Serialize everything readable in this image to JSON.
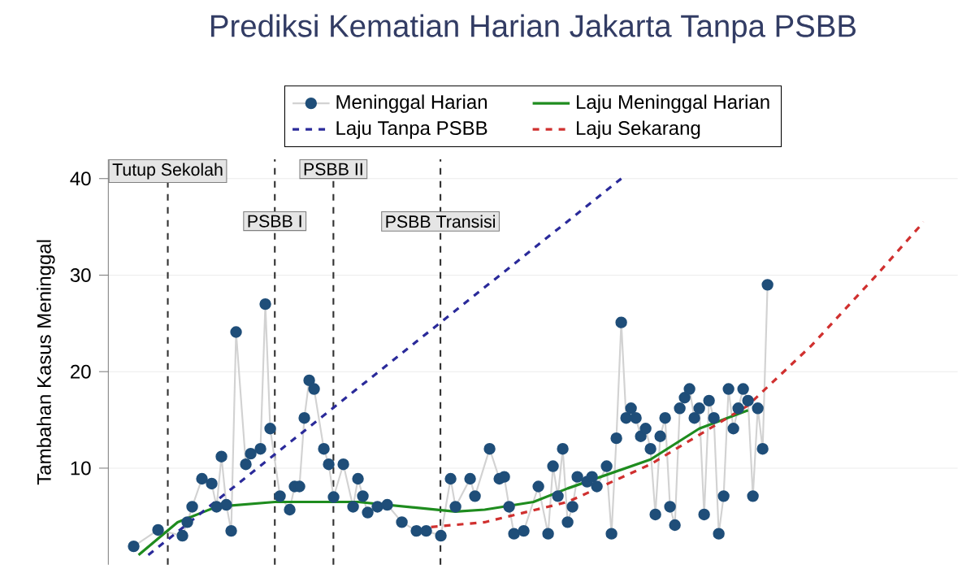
{
  "chart_data": {
    "type": "line",
    "title": "Prediksi Kematian Harian Jakarta Tanpa PSBB",
    "ylabel": "Tambahan Kasus Meninggal",
    "categories": [
      null,
      null,
      null,
      null,
      null,
      null,
      null,
      null,
      null,
      null,
      null,
      null,
      null,
      null,
      null,
      null,
      null,
      null,
      null,
      null,
      null,
      null,
      null,
      null,
      null,
      null,
      null,
      null,
      null,
      null,
      null,
      null,
      null,
      null,
      null,
      null,
      null,
      null,
      null,
      null,
      null,
      null,
      null,
      null,
      null,
      null,
      null,
      null,
      null,
      null,
      null,
      null,
      null,
      null,
      null,
      null,
      null,
      null,
      null,
      null,
      null,
      null,
      null,
      null,
      null,
      null,
      null,
      null,
      null,
      null,
      null,
      null,
      null,
      null,
      null,
      null,
      null,
      null,
      null,
      null,
      null,
      null,
      null,
      null,
      null,
      null,
      null,
      null,
      null,
      null,
      null,
      null,
      null,
      null,
      null,
      null,
      null,
      null,
      null,
      null,
      null,
      null,
      null,
      null,
      null,
      null,
      null,
      null,
      null,
      null,
      null,
      null,
      null,
      null,
      null,
      null,
      null,
      null,
      null,
      null,
      null,
      null,
      null,
      null,
      null,
      null,
      null,
      null,
      null,
      null,
      null,
      null,
      null,
      null,
      null,
      null,
      null,
      null,
      null,
      null,
      null,
      null,
      null,
      null,
      null,
      null,
      null,
      null,
      null,
      null,
      null,
      null,
      null,
      null,
      null,
      null,
      null,
      null,
      null,
      null,
      null,
      null,
      null,
      null,
      null,
      null,
      null,
      null
    ],
    "ylim": [
      0,
      42
    ],
    "yticks": [
      10,
      20,
      30,
      40
    ],
    "tick_labels": "y",
    "grid": "y",
    "legend": "top",
    "series": [
      {
        "name": "Meninggal Harian",
        "color": "#1f4e79",
        "marker": "circle",
        "line_style": "solid",
        "values": [
          null,
          1.9,
          null,
          null,
          null,
          null,
          3.6,
          null,
          null,
          null,
          null,
          3.0,
          4.4,
          6,
          null,
          8.9,
          null,
          8.4,
          6,
          11.2,
          6.2,
          3.5,
          24.1,
          null,
          10.4,
          11.5,
          null,
          12,
          27,
          14.1,
          null,
          7.1,
          null,
          5.7,
          8.1,
          8.1,
          15.2,
          19.1,
          18.2,
          null,
          12,
          10.4,
          7,
          null,
          10.4,
          null,
          6,
          8.9,
          7.1,
          5.4,
          null,
          6,
          null,
          6.2,
          null,
          null,
          4.4,
          null,
          null,
          3.5,
          null,
          3.5,
          null,
          null,
          3,
          null,
          8.9,
          6,
          null,
          null,
          8.9,
          7.1,
          null,
          null,
          12,
          null,
          8.9,
          9.1,
          6,
          3.2,
          null,
          3.5,
          null,
          null,
          8.1,
          null,
          3.2,
          10.2,
          7.1,
          12,
          4.4,
          6,
          9.1,
          null,
          8.6,
          9.1,
          8.1,
          null,
          10.2,
          3.2,
          13.1,
          25.1,
          15.2,
          16.2,
          15.2,
          13.3,
          14.1,
          12,
          5.2,
          13.3,
          15.2,
          6,
          4.1,
          16.2,
          17.3,
          18.2,
          15.2,
          16.2,
          5.2,
          17,
          15.2,
          3.2,
          7.1,
          18.2,
          14.1,
          16.2,
          18.2,
          17,
          7.1,
          16.2,
          12,
          29,
          null,
          null,
          null,
          null,
          null,
          null,
          null,
          null,
          null,
          null,
          null,
          null,
          null,
          null,
          null,
          null,
          null,
          null,
          null,
          null,
          null,
          null,
          null,
          null,
          null,
          null,
          null,
          null,
          null,
          null,
          null,
          null,
          null,
          null,
          null,
          null
        ]
      },
      {
        "name": "Laju Meninggal Harian",
        "color": "#1e8c1e",
        "marker": "none",
        "line_style": "solid",
        "values": [
          null,
          null,
          1.0,
          null,
          null,
          null,
          null,
          null,
          null,
          null,
          4.4,
          null,
          null,
          null,
          null,
          null,
          null,
          null,
          6,
          null,
          null,
          null,
          null,
          null,
          null,
          null,
          null,
          null,
          null,
          null,
          6.5,
          null,
          null,
          null,
          null,
          null,
          null,
          null,
          null,
          null,
          null,
          null,
          null,
          null,
          null,
          null,
          null,
          6.5,
          null,
          null,
          null,
          null,
          null,
          null,
          null,
          null,
          null,
          6,
          null,
          null,
          null,
          null,
          null,
          null,
          null,
          null,
          null,
          5.5,
          null,
          null,
          null,
          null,
          null,
          5.7,
          null,
          null,
          null,
          null,
          null,
          null,
          null,
          null,
          null,
          6.5,
          null,
          null,
          null,
          null,
          null,
          null,
          7.9,
          null,
          null,
          null,
          null,
          null,
          null,
          null,
          null,
          null,
          null,
          null,
          null,
          null,
          null,
          null,
          null,
          10.9,
          null,
          null,
          null,
          null,
          null,
          null,
          null,
          null,
          null,
          14.1,
          null,
          null,
          null,
          null,
          null,
          null,
          null,
          null,
          null,
          16,
          null,
          null,
          null,
          null,
          null,
          null,
          null,
          null,
          null,
          null,
          null,
          null,
          null,
          null,
          null,
          null,
          null,
          null,
          null,
          null,
          null,
          null,
          null,
          null,
          null,
          null,
          null,
          null,
          null,
          null,
          null,
          null,
          null,
          null,
          null,
          null,
          null,
          null,
          null,
          null
        ]
      },
      {
        "name": "Laju Tanpa PSBB",
        "color": "#2a2a9a",
        "marker": "none",
        "line_style": "dashed",
        "values": [
          null,
          null,
          null,
          null,
          1.0,
          null,
          null,
          null,
          null,
          null,
          null,
          null,
          null,
          null,
          null,
          null,
          null,
          null,
          null,
          null,
          null,
          null,
          null,
          null,
          null,
          null,
          null,
          null,
          null,
          null,
          null,
          null,
          null,
          null,
          null,
          null,
          null,
          null,
          null,
          null,
          null,
          null,
          null,
          null,
          null,
          null,
          null,
          null,
          null,
          null,
          null,
          null,
          null,
          null,
          null,
          null,
          null,
          null,
          null,
          null,
          null,
          null,
          null,
          null,
          null,
          null,
          null,
          null,
          null,
          null,
          null,
          null,
          null,
          null,
          null,
          null,
          null,
          null,
          null,
          null,
          null,
          null,
          null,
          null,
          null,
          null,
          null,
          null,
          null,
          null,
          null,
          null,
          null,
          null,
          null,
          null,
          null,
          null,
          null,
          null,
          null,
          40,
          null,
          null,
          null,
          null,
          null,
          null,
          null,
          null,
          null,
          null,
          null,
          null,
          null,
          null,
          null,
          null,
          null,
          null,
          null,
          null,
          null,
          null,
          null,
          null,
          null,
          null,
          null,
          null,
          null,
          null,
          null,
          null,
          null,
          null,
          null,
          null,
          null,
          null,
          null,
          null,
          null,
          null,
          null,
          null,
          null,
          null,
          null,
          null,
          null,
          null,
          null,
          null,
          null,
          null,
          null,
          null,
          null,
          null,
          null,
          null,
          null,
          null,
          null,
          null,
          null,
          null
        ]
      },
      {
        "name": "Laju Sekarang",
        "color": "#d0302f",
        "marker": "none",
        "line_style": "dashed",
        "values": [
          null,
          null,
          null,
          null,
          null,
          null,
          null,
          null,
          null,
          null,
          null,
          null,
          null,
          null,
          null,
          null,
          null,
          null,
          null,
          null,
          null,
          null,
          null,
          null,
          null,
          null,
          null,
          null,
          null,
          null,
          null,
          null,
          null,
          null,
          null,
          null,
          null,
          null,
          null,
          null,
          null,
          null,
          null,
          null,
          null,
          null,
          null,
          null,
          null,
          null,
          null,
          null,
          null,
          null,
          null,
          null,
          null,
          null,
          null,
          null,
          null,
          null,
          3.9,
          null,
          null,
          null,
          null,
          null,
          null,
          null,
          null,
          null,
          null,
          4.4,
          null,
          null,
          null,
          null,
          null,
          null,
          null,
          null,
          null,
          null,
          null,
          null,
          null,
          null,
          null,
          null,
          6.5,
          null,
          null,
          null,
          null,
          null,
          null,
          null,
          null,
          null,
          null,
          null,
          null,
          null,
          null,
          null,
          null,
          10.4,
          null,
          null,
          null,
          null,
          null,
          null,
          null,
          null,
          null,
          null,
          null,
          null,
          null,
          null,
          null,
          null,
          null,
          null,
          null,
          16.5,
          null,
          null,
          null,
          null,
          null,
          null,
          null,
          null,
          null,
          null,
          null,
          null,
          22.7,
          null,
          null,
          null,
          null,
          null,
          null,
          null,
          null,
          null,
          null,
          null,
          null,
          29.8,
          null,
          null,
          null,
          null,
          null,
          null,
          null,
          null,
          null,
          35.5,
          null,
          null,
          null,
          null
        ]
      }
    ],
    "annotations": [
      "Tutup Sekolah",
      "PSBB I",
      "PSBB II",
      "PSBB Transisi"
    ]
  }
}
